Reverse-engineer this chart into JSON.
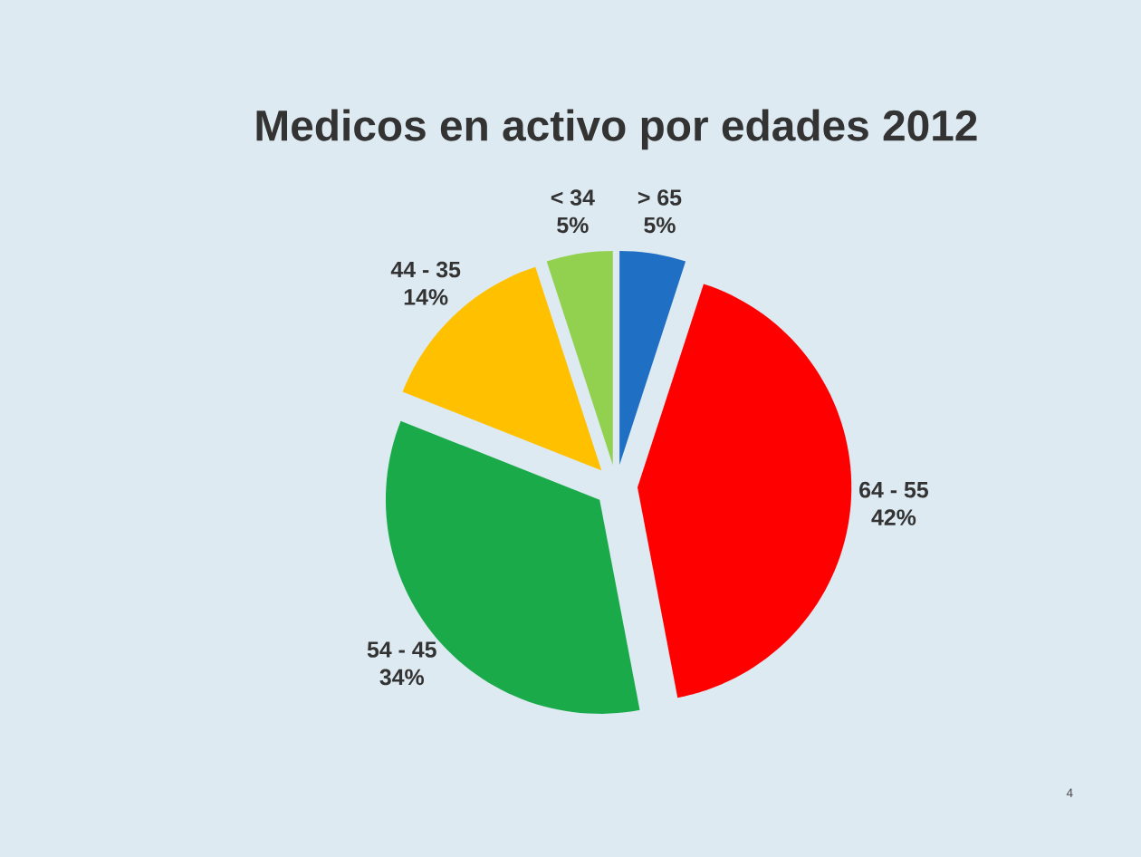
{
  "chart_data": {
    "type": "pie",
    "title": "Medicos en activo por edades 2012",
    "categories": [
      "> 65",
      "64 - 55",
      "54 - 45",
      "44 - 35",
      "< 34"
    ],
    "values": [
      5,
      42,
      34,
      14,
      5
    ],
    "value_labels": [
      "5%",
      "42%",
      "34%",
      "14%",
      "5%"
    ],
    "colors": [
      "#1f6fc4",
      "#ff0000",
      "#1aaa4a",
      "#ffc000",
      "#92d050"
    ],
    "annotations": [
      "4"
    ]
  }
}
